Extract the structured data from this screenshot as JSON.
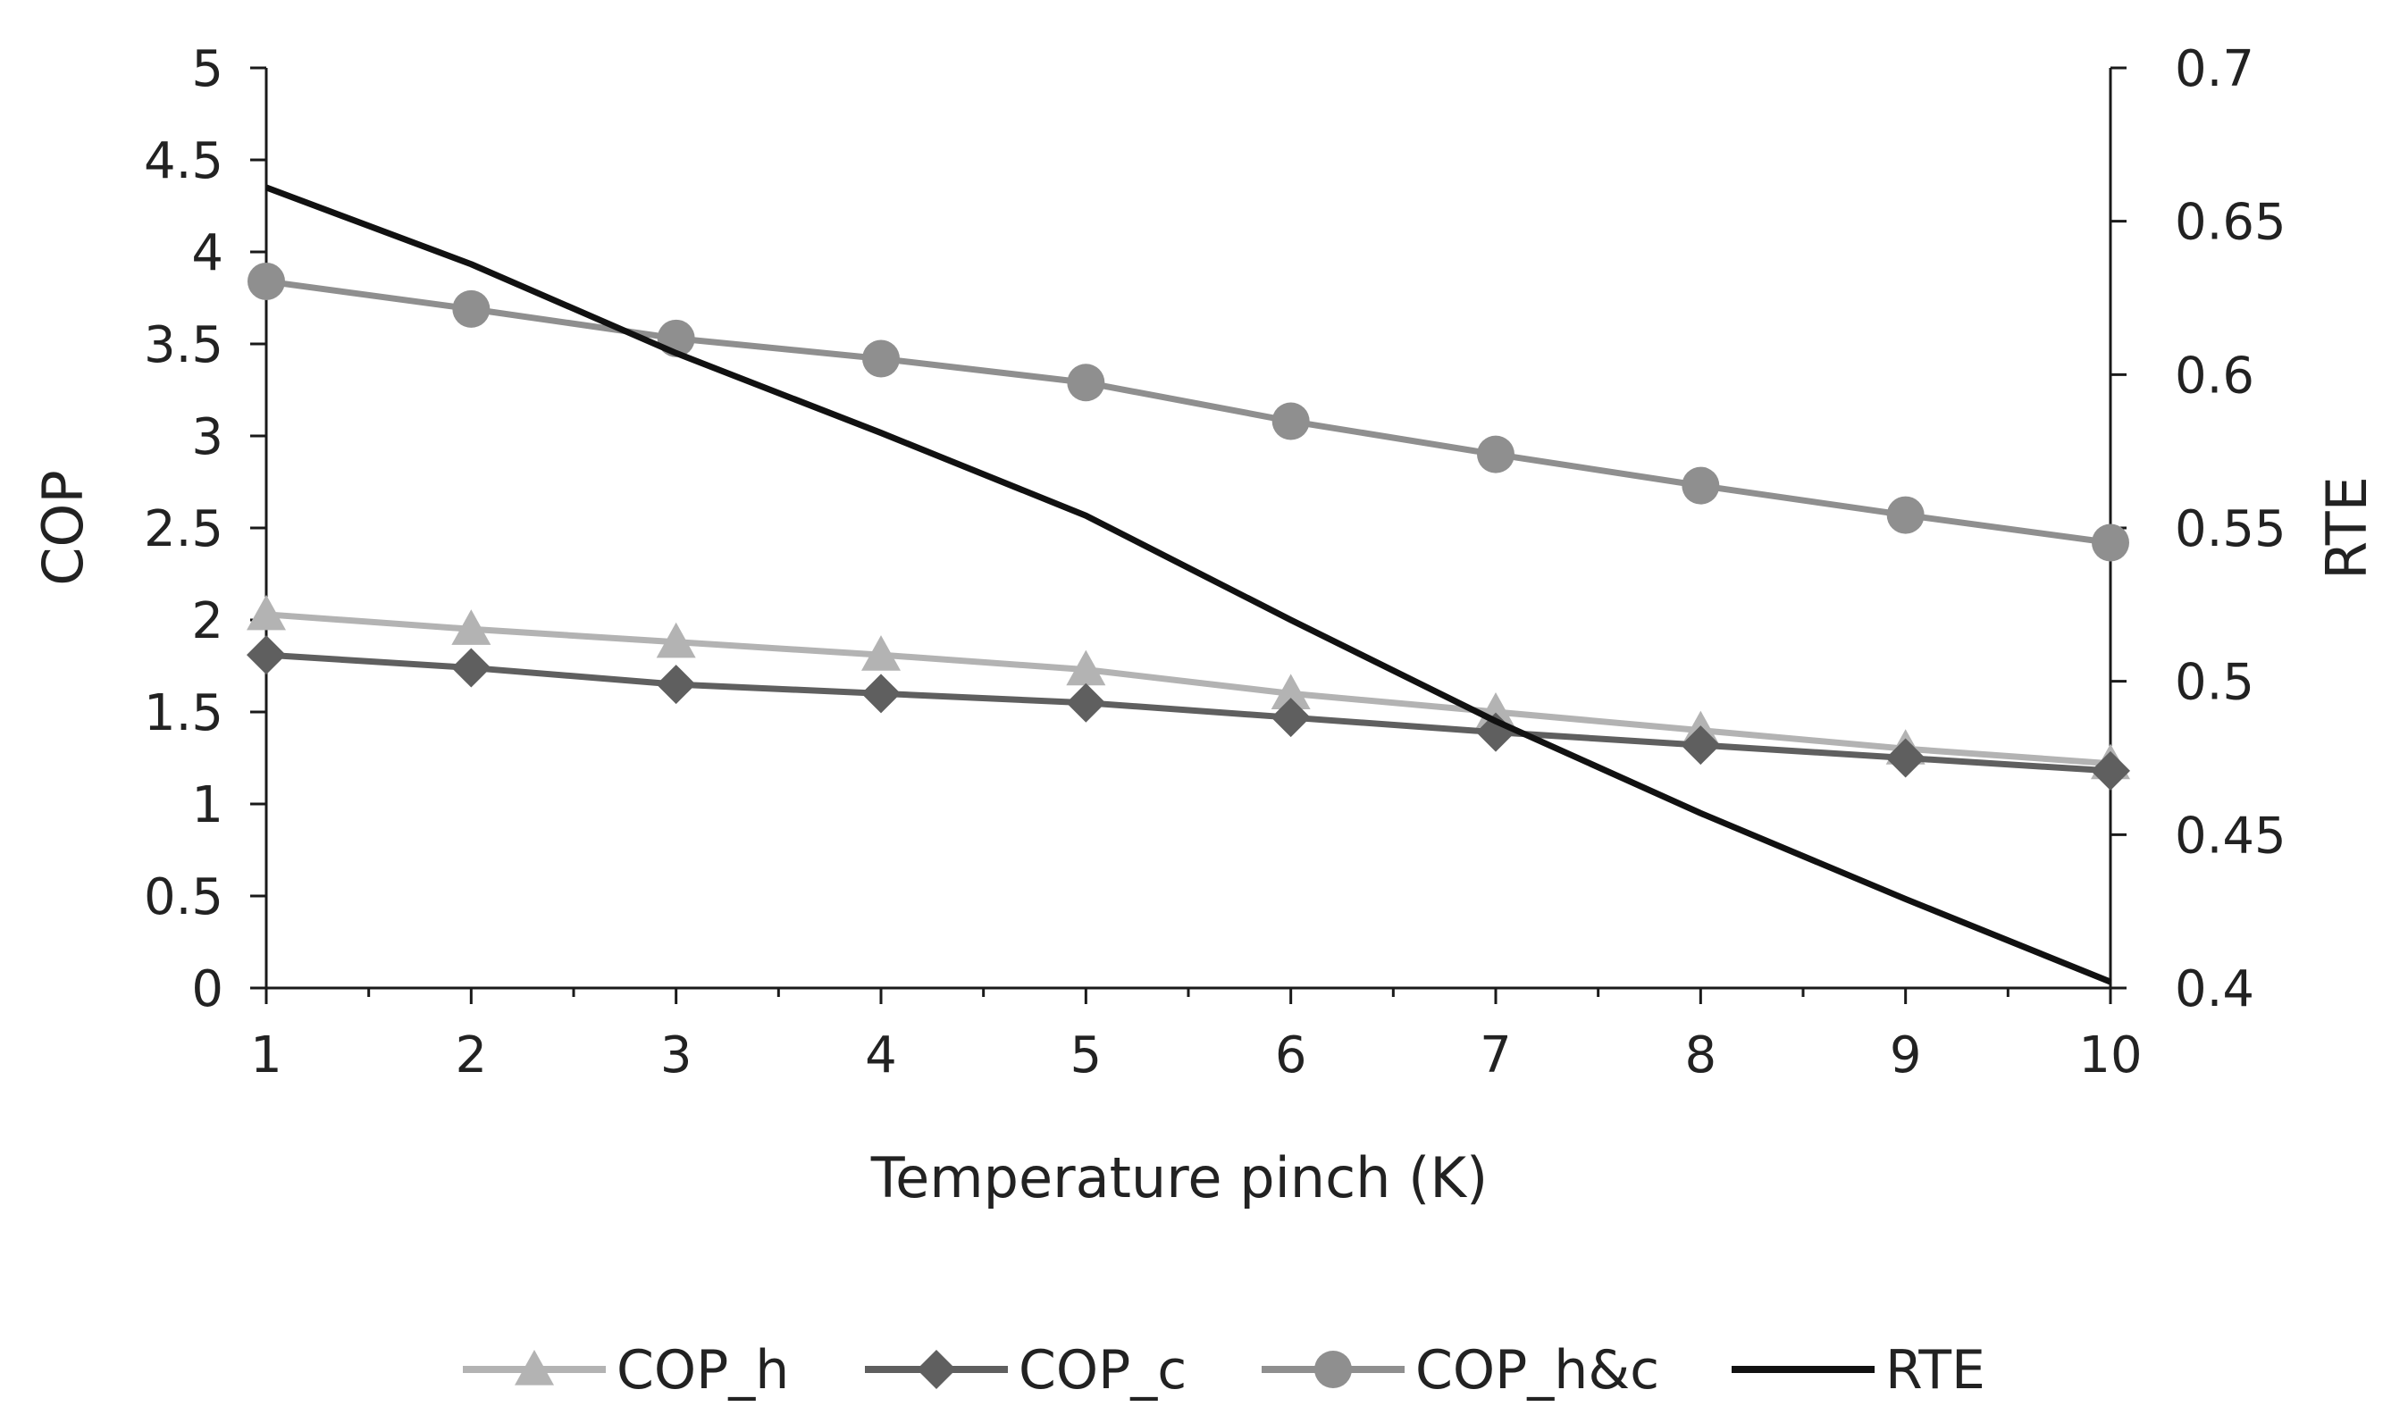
{
  "chart_data": {
    "type": "line",
    "x": [
      1,
      2,
      3,
      4,
      5,
      6,
      7,
      8,
      9,
      10
    ],
    "xlabel": "Temperature pinch (K)",
    "ylabel": "COP",
    "y2label": "RTE",
    "xlim": [
      1,
      10
    ],
    "ylim": [
      0,
      5
    ],
    "y2lim": [
      0.4,
      0.7
    ],
    "xticks": [
      "1",
      "2",
      "3",
      "4",
      "5",
      "6",
      "7",
      "8",
      "9",
      "10"
    ],
    "yticks": [
      "0",
      "0.5",
      "1",
      "1.5",
      "2",
      "2.5",
      "3",
      "3.5",
      "4",
      "4.5",
      "5"
    ],
    "y2ticks": [
      "0.4",
      "0.45",
      "0.5",
      "0.55",
      "0.6",
      "0.65",
      "0.7"
    ],
    "grid": false,
    "legend_position": "bottom",
    "series": [
      {
        "name": "COP_h",
        "axis": "left",
        "marker": "triangle",
        "color": "#b3b3b3",
        "values": [
          2.03,
          1.95,
          1.88,
          1.81,
          1.73,
          1.6,
          1.5,
          1.4,
          1.3,
          1.22
        ]
      },
      {
        "name": "COP_c",
        "axis": "left",
        "marker": "diamond",
        "color": "#5f5f5f",
        "values": [
          1.81,
          1.74,
          1.65,
          1.6,
          1.55,
          1.47,
          1.39,
          1.32,
          1.25,
          1.18
        ]
      },
      {
        "name": "COP_h&c",
        "axis": "left",
        "marker": "circle",
        "color": "#8f8f8f",
        "values": [
          3.84,
          3.69,
          3.53,
          3.42,
          3.29,
          3.08,
          2.9,
          2.73,
          2.57,
          2.42
        ]
      },
      {
        "name": "RTE",
        "axis": "right",
        "marker": "none",
        "color": "#111111",
        "values": [
          0.661,
          0.636,
          0.607,
          0.581,
          0.554,
          0.52,
          0.487,
          0.457,
          0.429,
          0.402
        ]
      }
    ]
  }
}
